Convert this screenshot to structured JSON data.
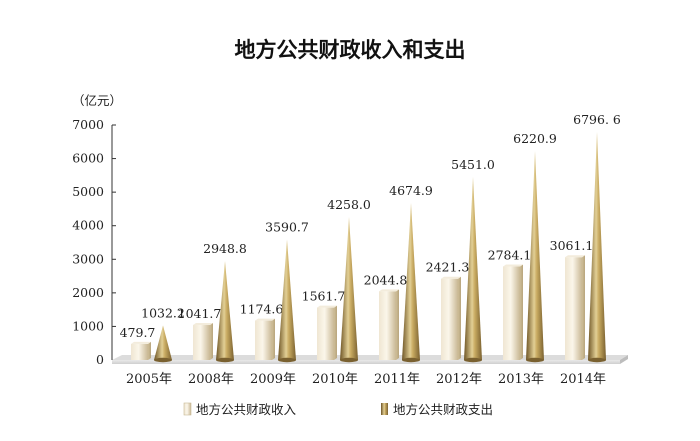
{
  "chart_data": {
    "type": "bar",
    "title": "地方公共财政收入和支出",
    "ylabel": "（亿元）",
    "xlabel": "",
    "ylim": [
      0,
      7000
    ],
    "yticks": [
      0,
      1000,
      2000,
      3000,
      4000,
      5000,
      6000,
      7000
    ],
    "categories": [
      "2005年",
      "2008年",
      "2009年",
      "2010年",
      "2011年",
      "2012年",
      "2013年",
      "2014年"
    ],
    "series": [
      {
        "name": "地方公共财政收入",
        "values": [
          479.7,
          1041.7,
          1174.6,
          1561.7,
          2044.8,
          2421.3,
          2784.1,
          3061.1
        ],
        "labels": [
          "479.7",
          "1041.7",
          "1174.6",
          "1561.7",
          "2044.8",
          "2421.3",
          "2784.1",
          "3061.1"
        ],
        "color": "#d9ccae"
      },
      {
        "name": "地方公共财政支出",
        "values": [
          1032.2,
          2948.8,
          3590.7,
          4258.0,
          4674.9,
          5451.0,
          6220.9,
          6796.6
        ],
        "labels": [
          "1032.2",
          "2948.8",
          "3590.7",
          "4258.0",
          "4674.9",
          "5451.0",
          "6220.9",
          "6796. 6"
        ],
        "color": "#a88c4e"
      }
    ],
    "grid": false,
    "legend_position": "bottom"
  }
}
